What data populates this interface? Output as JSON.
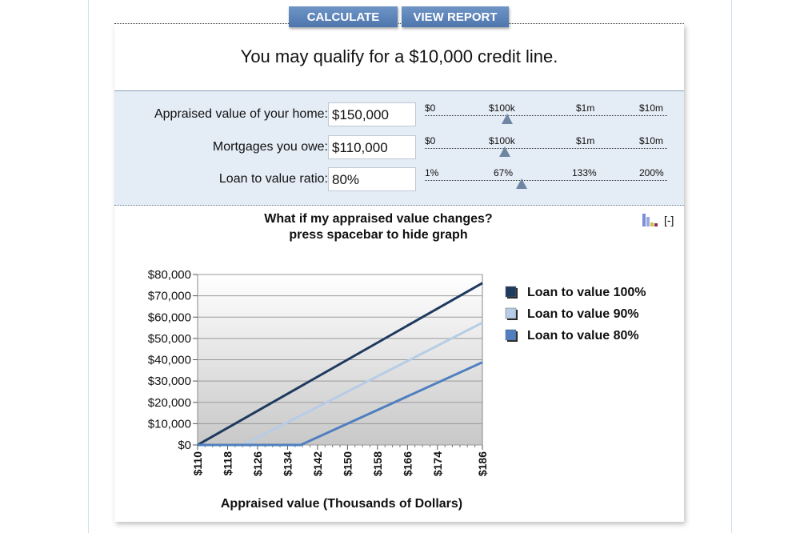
{
  "toolbar": {
    "calculate_label": "CALCULATE",
    "report_label": "VIEW REPORT"
  },
  "result": {
    "text": "You may qualify for a $10,000 credit line."
  },
  "inputs": {
    "home_value": {
      "label": "Appraised value of your home:",
      "value": "$150,000",
      "slider_ticks": [
        "$0",
        "$100k",
        "$1m",
        "$10m"
      ],
      "slider_position": 0.34
    },
    "mortgages": {
      "label": "Mortgages you owe:",
      "value": "$110,000",
      "slider_ticks": [
        "$0",
        "$100k",
        "$1m",
        "$10m"
      ],
      "slider_position": 0.33
    },
    "ltv": {
      "label": "Loan to value ratio:",
      "value": "80%",
      "slider_ticks": [
        "1%",
        "67%",
        "133%",
        "200%"
      ],
      "slider_position": 0.4
    }
  },
  "graph": {
    "title_line1": "What if my appraised value changes?",
    "title_line2": "press spacebar to hide graph",
    "toggle_label": "[-]",
    "chart_icon": "bar-chart-icon"
  },
  "chart_data": {
    "type": "line",
    "title": "What if my appraised value changes?",
    "xlabel": "Appraised value  (Thousands of Dollars)",
    "ylabel": "",
    "x_tick_labels": [
      "$110",
      "$118",
      "$126",
      "$134",
      "$142",
      "$150",
      "$158",
      "$166",
      "$174",
      "$186"
    ],
    "x_tick_values": [
      110,
      118,
      126,
      134,
      142,
      150,
      158,
      166,
      174,
      186
    ],
    "y_tick_labels": [
      "$0",
      "$10,000",
      "$20,000",
      "$30,000",
      "$40,000",
      "$50,000",
      "$60,000",
      "$70,000",
      "$80,000"
    ],
    "xlim": [
      110,
      186
    ],
    "ylim": [
      0,
      80000
    ],
    "grid": true,
    "legend_position": "right",
    "series": [
      {
        "name": "Loan to value 100%",
        "color": "#1f3a5f",
        "x": [
          110,
          186
        ],
        "y": [
          0,
          76000
        ]
      },
      {
        "name": "Loan to value 90%",
        "color": "#b7cce6",
        "x": [
          110,
          122.2,
          186
        ],
        "y": [
          0,
          0,
          57400
        ]
      },
      {
        "name": "Loan to value 80%",
        "color": "#4f7fc0",
        "x": [
          110,
          137.5,
          186
        ],
        "y": [
          0,
          0,
          38800
        ]
      }
    ]
  }
}
